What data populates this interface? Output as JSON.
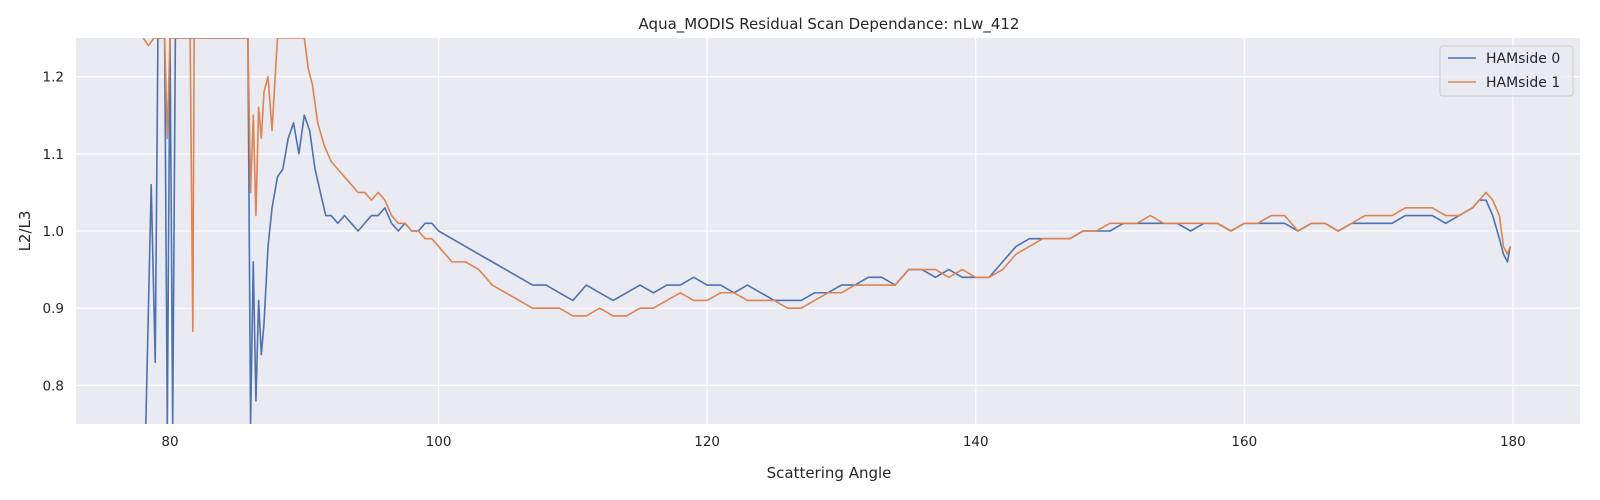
{
  "chart_data": {
    "type": "line",
    "title": "Aqua_MODIS Residual Scan Dependance: nLw_412",
    "xlabel": "Scattering Angle",
    "ylabel": "L2/L3",
    "xlim": [
      73,
      185
    ],
    "ylim": [
      0.75,
      1.25
    ],
    "xticks": [
      80,
      100,
      120,
      140,
      160,
      180
    ],
    "yticks": [
      0.8,
      0.9,
      1.0,
      1.1,
      1.2
    ],
    "grid": true,
    "background": "#EAEAF2",
    "legend_position": "top-right",
    "series": [
      {
        "name": "HAMside 0",
        "color": "#4C72B0",
        "x": [
          78.2,
          78.6,
          78.9,
          79.1,
          79.3,
          79.6,
          79.8,
          80.0,
          80.2,
          80.4,
          80.6,
          80.9,
          81.2,
          85.8,
          86.0,
          86.2,
          86.4,
          86.6,
          86.8,
          87.0,
          87.3,
          87.6,
          88.0,
          88.4,
          88.8,
          89.2,
          89.6,
          90.0,
          90.4,
          90.8,
          91.2,
          91.6,
          92.0,
          92.5,
          93.0,
          93.5,
          94.0,
          94.5,
          95.0,
          95.5,
          96.0,
          96.5,
          97.0,
          97.5,
          98.0,
          98.5,
          99.0,
          99.5,
          100.0,
          101.0,
          102.0,
          103.0,
          104.0,
          105.0,
          106.0,
          107.0,
          108.0,
          109.0,
          110.0,
          111.0,
          112.0,
          113.0,
          114.0,
          115.0,
          116.0,
          117.0,
          118.0,
          119.0,
          120.0,
          121.0,
          122.0,
          123.0,
          124.0,
          125.0,
          126.0,
          127.0,
          128.0,
          129.0,
          130.0,
          131.0,
          132.0,
          133.0,
          134.0,
          135.0,
          136.0,
          137.0,
          138.0,
          139.0,
          140.0,
          141.0,
          142.0,
          143.0,
          144.0,
          145.0,
          146.0,
          147.0,
          148.0,
          149.0,
          150.0,
          151.0,
          152.0,
          153.0,
          154.0,
          155.0,
          156.0,
          157.0,
          158.0,
          159.0,
          160.0,
          161.0,
          162.0,
          163.0,
          164.0,
          165.0,
          166.0,
          167.0,
          168.0,
          169.0,
          170.0,
          171.0,
          172.0,
          173.0,
          174.0,
          175.0,
          176.0,
          177.0,
          177.5,
          178.0,
          178.5,
          179.0,
          179.3,
          179.6,
          179.8
        ],
        "y": [
          0.75,
          1.06,
          0.83,
          1.25,
          1.25,
          1.25,
          0.75,
          1.25,
          0.75,
          1.25,
          1.25,
          1.25,
          1.25,
          1.25,
          0.75,
          0.96,
          0.78,
          0.91,
          0.84,
          0.88,
          0.98,
          1.03,
          1.07,
          1.08,
          1.12,
          1.14,
          1.1,
          1.15,
          1.13,
          1.08,
          1.05,
          1.02,
          1.02,
          1.01,
          1.02,
          1.01,
          1.0,
          1.01,
          1.02,
          1.02,
          1.03,
          1.01,
          1.0,
          1.01,
          1.0,
          1.0,
          1.01,
          1.01,
          1.0,
          0.99,
          0.98,
          0.97,
          0.96,
          0.95,
          0.94,
          0.93,
          0.93,
          0.92,
          0.91,
          0.93,
          0.92,
          0.91,
          0.92,
          0.93,
          0.92,
          0.93,
          0.93,
          0.94,
          0.93,
          0.93,
          0.92,
          0.93,
          0.92,
          0.91,
          0.91,
          0.91,
          0.92,
          0.92,
          0.93,
          0.93,
          0.94,
          0.94,
          0.93,
          0.95,
          0.95,
          0.94,
          0.95,
          0.94,
          0.94,
          0.94,
          0.96,
          0.98,
          0.99,
          0.99,
          0.99,
          0.99,
          1.0,
          1.0,
          1.0,
          1.01,
          1.01,
          1.01,
          1.01,
          1.01,
          1.0,
          1.01,
          1.01,
          1.0,
          1.01,
          1.01,
          1.01,
          1.01,
          1.0,
          1.01,
          1.01,
          1.0,
          1.01,
          1.01,
          1.01,
          1.01,
          1.02,
          1.02,
          1.02,
          1.01,
          1.02,
          1.03,
          1.04,
          1.04,
          1.02,
          0.99,
          0.97,
          0.96,
          0.98
        ]
      },
      {
        "name": "HAMside 1",
        "color": "#DD8452",
        "x": [
          78.0,
          78.4,
          78.8,
          79.2,
          79.6,
          79.8,
          80.0,
          80.2,
          80.6,
          81.0,
          81.5,
          81.7,
          81.8,
          82.2,
          85.8,
          86.0,
          86.2,
          86.4,
          86.6,
          86.8,
          87.0,
          87.3,
          87.6,
          88.0,
          88.5,
          89.0,
          89.5,
          90.0,
          90.3,
          90.6,
          91.0,
          91.5,
          92.0,
          92.5,
          93.0,
          93.5,
          94.0,
          94.5,
          95.0,
          95.5,
          96.0,
          96.5,
          97.0,
          97.5,
          98.0,
          98.5,
          99.0,
          99.5,
          100.0,
          101.0,
          102.0,
          103.0,
          104.0,
          105.0,
          106.0,
          107.0,
          108.0,
          109.0,
          110.0,
          111.0,
          112.0,
          113.0,
          114.0,
          115.0,
          116.0,
          117.0,
          118.0,
          119.0,
          120.0,
          121.0,
          122.0,
          123.0,
          124.0,
          125.0,
          126.0,
          127.0,
          128.0,
          129.0,
          130.0,
          131.0,
          132.0,
          133.0,
          134.0,
          135.0,
          136.0,
          137.0,
          138.0,
          139.0,
          140.0,
          141.0,
          142.0,
          143.0,
          144.0,
          145.0,
          146.0,
          147.0,
          148.0,
          149.0,
          150.0,
          151.0,
          152.0,
          153.0,
          154.0,
          155.0,
          156.0,
          157.0,
          158.0,
          159.0,
          160.0,
          161.0,
          162.0,
          163.0,
          164.0,
          165.0,
          166.0,
          167.0,
          168.0,
          169.0,
          170.0,
          171.0,
          172.0,
          173.0,
          174.0,
          175.0,
          176.0,
          177.0,
          177.5,
          178.0,
          178.5,
          179.0,
          179.3,
          179.6,
          179.8
        ],
        "y": [
          1.25,
          1.24,
          1.25,
          1.25,
          1.25,
          1.12,
          1.25,
          1.25,
          1.25,
          1.25,
          1.25,
          0.87,
          1.25,
          1.25,
          1.25,
          1.05,
          1.15,
          1.02,
          1.16,
          1.12,
          1.18,
          1.2,
          1.13,
          1.25,
          1.25,
          1.25,
          1.25,
          1.25,
          1.21,
          1.19,
          1.14,
          1.11,
          1.09,
          1.08,
          1.07,
          1.06,
          1.05,
          1.05,
          1.04,
          1.05,
          1.04,
          1.02,
          1.01,
          1.01,
          1.0,
          1.0,
          0.99,
          0.99,
          0.98,
          0.96,
          0.96,
          0.95,
          0.93,
          0.92,
          0.91,
          0.9,
          0.9,
          0.9,
          0.89,
          0.89,
          0.9,
          0.89,
          0.89,
          0.9,
          0.9,
          0.91,
          0.92,
          0.91,
          0.91,
          0.92,
          0.92,
          0.91,
          0.91,
          0.91,
          0.9,
          0.9,
          0.91,
          0.92,
          0.92,
          0.93,
          0.93,
          0.93,
          0.93,
          0.95,
          0.95,
          0.95,
          0.94,
          0.95,
          0.94,
          0.94,
          0.95,
          0.97,
          0.98,
          0.99,
          0.99,
          0.99,
          1.0,
          1.0,
          1.01,
          1.01,
          1.01,
          1.02,
          1.01,
          1.01,
          1.01,
          1.01,
          1.01,
          1.0,
          1.01,
          1.01,
          1.02,
          1.02,
          1.0,
          1.01,
          1.01,
          1.0,
          1.01,
          1.02,
          1.02,
          1.02,
          1.03,
          1.03,
          1.03,
          1.02,
          1.02,
          1.03,
          1.04,
          1.05,
          1.04,
          1.02,
          0.98,
          0.97,
          0.98
        ]
      }
    ]
  }
}
